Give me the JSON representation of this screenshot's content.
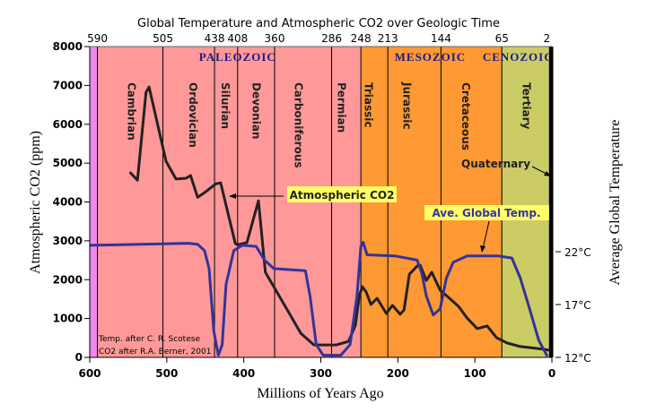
{
  "chart_data": {
    "type": "line",
    "title": "Global Temperature and Atmospheric CO2 over Geologic Time",
    "xlabel": "Millions of Years Ago",
    "ylabel": "Atmospheric CO2 (ppm)",
    "y2label": "Average Global Temperature",
    "xlim": [
      600,
      0
    ],
    "ylim": [
      0,
      8000
    ],
    "y2lim": [
      12,
      22
    ],
    "x_ticks": [
      600,
      500,
      400,
      300,
      200,
      100,
      0
    ],
    "y_ticks": [
      0,
      1000,
      2000,
      3000,
      4000,
      5000,
      6000,
      7000,
      8000
    ],
    "y2_ticks": [
      {
        "value": 22,
        "label": "22°C"
      },
      {
        "value": 17,
        "label": "17°C"
      },
      {
        "value": 12,
        "label": "12°C"
      }
    ],
    "boundary_ticks": [
      590,
      505,
      438,
      408,
      360,
      286,
      248,
      213,
      144,
      65,
      2
    ],
    "eras": [
      {
        "name": "",
        "start": 600,
        "end": 590,
        "color": "#ee88ee"
      },
      {
        "name": "PALEOZOIC",
        "start": 590,
        "end": 248,
        "color": "#ff9999",
        "label_at": 408
      },
      {
        "name": "MESOZOIC",
        "start": 248,
        "end": 65,
        "color": "#ff9933",
        "label_at": 158
      },
      {
        "name": "CENOZOIC",
        "start": 65,
        "end": 0,
        "color": "#cccc66",
        "label_at": 44
      }
    ],
    "periods": [
      {
        "name": "Cambrian",
        "start": 590,
        "end": 505,
        "label_at": 546
      },
      {
        "name": "Ordovician",
        "start": 505,
        "end": 438,
        "label_at": 466
      },
      {
        "name": "Silurian",
        "start": 438,
        "end": 408,
        "label_at": 424
      },
      {
        "name": "Devonian",
        "start": 408,
        "end": 360,
        "label_at": 384
      },
      {
        "name": "Carboniferous",
        "start": 360,
        "end": 286,
        "label_at": 329
      },
      {
        "name": "Permian",
        "start": 286,
        "end": 248,
        "label_at": 273
      },
      {
        "name": "Triassic",
        "start": 248,
        "end": 213,
        "label_at": 238
      },
      {
        "name": "Jurassic",
        "start": 213,
        "end": 144,
        "label_at": 188
      },
      {
        "name": "Cretaceous",
        "start": 144,
        "end": 65,
        "label_at": 112
      },
      {
        "name": "Tertiary",
        "start": 65,
        "end": 2,
        "label_at": 33
      }
    ],
    "series": [
      {
        "name": "Atmospheric CO2",
        "axis": "left",
        "color": "#222222",
        "points": [
          [
            548,
            4770
          ],
          [
            538,
            4560
          ],
          [
            527,
            6820
          ],
          [
            523,
            6960
          ],
          [
            501,
            5050
          ],
          [
            488,
            4590
          ],
          [
            475,
            4610
          ],
          [
            469,
            4680
          ],
          [
            460,
            4120
          ],
          [
            451,
            4240
          ],
          [
            436,
            4470
          ],
          [
            430,
            4490
          ],
          [
            411,
            2930
          ],
          [
            408,
            2900
          ],
          [
            396,
            2950
          ],
          [
            388,
            3530
          ],
          [
            381,
            4030
          ],
          [
            372,
            2190
          ],
          [
            344,
            1240
          ],
          [
            326,
            620
          ],
          [
            309,
            320
          ],
          [
            280,
            320
          ],
          [
            264,
            410
          ],
          [
            255,
            830
          ],
          [
            250,
            1590
          ],
          [
            246,
            1820
          ],
          [
            241,
            1680
          ],
          [
            235,
            1360
          ],
          [
            227,
            1520
          ],
          [
            215,
            1130
          ],
          [
            207,
            1340
          ],
          [
            197,
            1110
          ],
          [
            192,
            1220
          ],
          [
            185,
            2140
          ],
          [
            175,
            2350
          ],
          [
            171,
            2370
          ],
          [
            163,
            1980
          ],
          [
            156,
            2190
          ],
          [
            145,
            1730
          ],
          [
            134,
            1540
          ],
          [
            121,
            1310
          ],
          [
            110,
            1010
          ],
          [
            97,
            740
          ],
          [
            84,
            810
          ],
          [
            72,
            510
          ],
          [
            58,
            370
          ],
          [
            41,
            280
          ],
          [
            11,
            210
          ],
          [
            0,
            170
          ]
        ]
      },
      {
        "name": "Ave. Global Temp.",
        "axis": "right",
        "color": "#333399",
        "points": [
          [
            600,
            22.6
          ],
          [
            472,
            22.8
          ],
          [
            460,
            22.7
          ],
          [
            451,
            22.1
          ],
          [
            445,
            20.4
          ],
          [
            439,
            14.5
          ],
          [
            433,
            12.2
          ],
          [
            428,
            13.2
          ],
          [
            423,
            18.9
          ],
          [
            413,
            22.1
          ],
          [
            402,
            22.6
          ],
          [
            384,
            22.5
          ],
          [
            373,
            21.2
          ],
          [
            361,
            20.4
          ],
          [
            320,
            20.2
          ],
          [
            314,
            17.8
          ],
          [
            306,
            13.2
          ],
          [
            297,
            12.2
          ],
          [
            274,
            12.2
          ],
          [
            262,
            13.2
          ],
          [
            253,
            17.8
          ],
          [
            248,
            22.5
          ],
          [
            245,
            22.9
          ],
          [
            240,
            21.7
          ],
          [
            204,
            21.6
          ],
          [
            175,
            21.2
          ],
          [
            169,
            20.0
          ],
          [
            163,
            17.8
          ],
          [
            154,
            16.0
          ],
          [
            145,
            16.6
          ],
          [
            137,
            19.5
          ],
          [
            128,
            21.0
          ],
          [
            110,
            21.6
          ],
          [
            70,
            21.6
          ],
          [
            52,
            21.4
          ],
          [
            41,
            19.5
          ],
          [
            29,
            16.6
          ],
          [
            17,
            13.6
          ],
          [
            6,
            12.1
          ]
        ]
      }
    ],
    "annotations": {
      "co2_label": "Atmospheric CO2",
      "temp_label": "Ave. Global Temp.",
      "quaternary_label": "Quaternary",
      "credit_temp": "Temp. after C. R. Scotese",
      "credit_co2": "CO2 after R.A. Berner, 2001"
    },
    "grid": false
  }
}
